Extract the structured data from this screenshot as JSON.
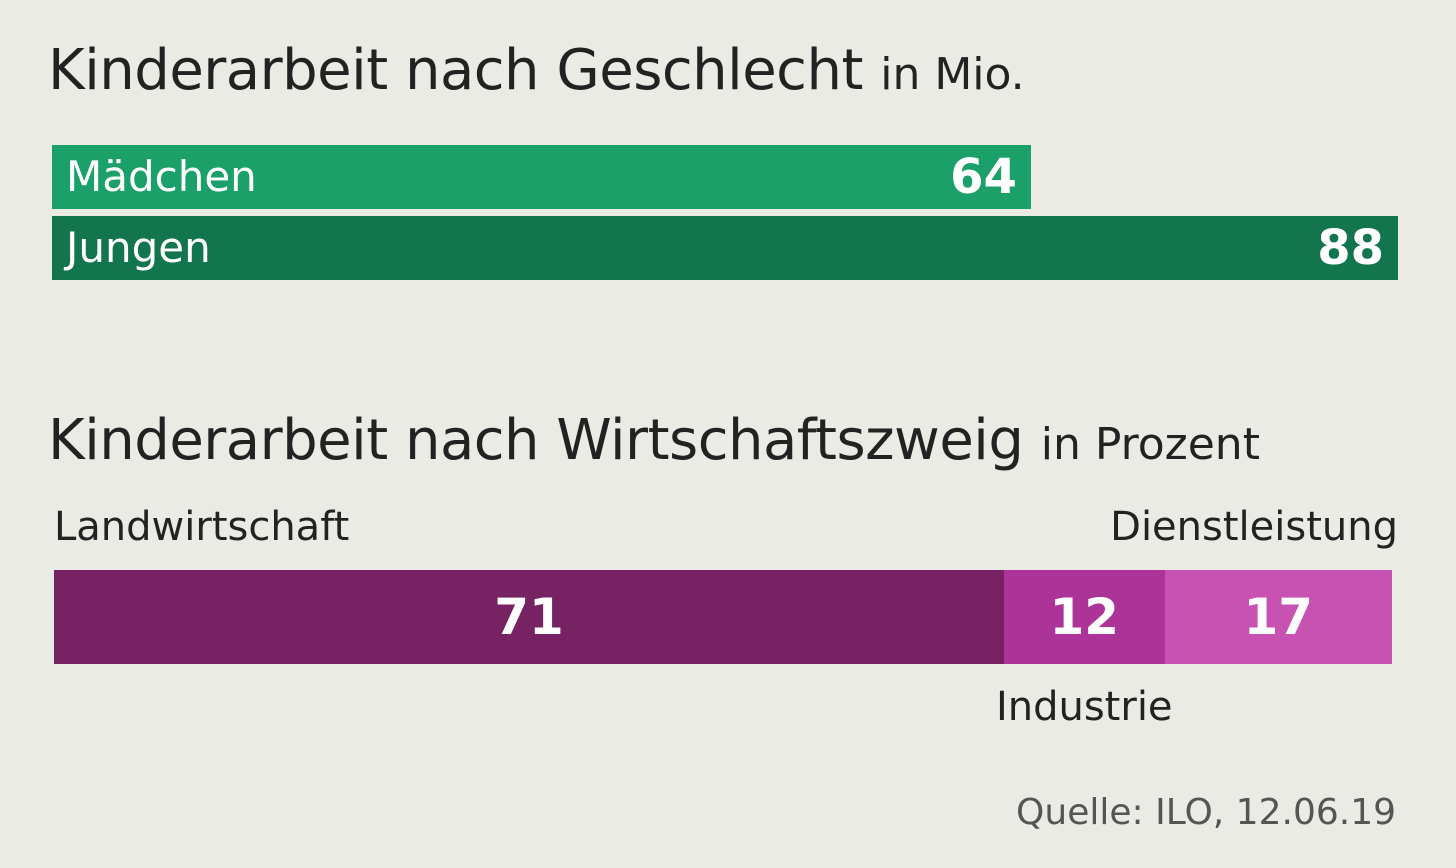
{
  "colors": {
    "background": "#ebebe6",
    "girls": "#1ba06a",
    "boys": "#13754d",
    "agriculture": "#772263",
    "industry": "#ac3397",
    "services": "#c752b1"
  },
  "chart_data": [
    {
      "type": "bar",
      "orientation": "horizontal",
      "title": "Kinderarbeit nach Geschlecht",
      "unit": "in Mio.",
      "categories": [
        "Mädchen",
        "Jungen"
      ],
      "values": [
        64,
        88
      ],
      "xlim": [
        0,
        88
      ]
    },
    {
      "type": "bar",
      "orientation": "horizontal",
      "stacked": true,
      "title": "Kinderarbeit nach Wirtschaftszweig",
      "unit": "in Prozent",
      "categories": [
        "Landwirtschaft",
        "Industrie",
        "Dienstleistung"
      ],
      "values": [
        71,
        12,
        17
      ],
      "xlim": [
        0,
        100
      ]
    }
  ],
  "source": "Quelle: ILO, 12.06.19"
}
